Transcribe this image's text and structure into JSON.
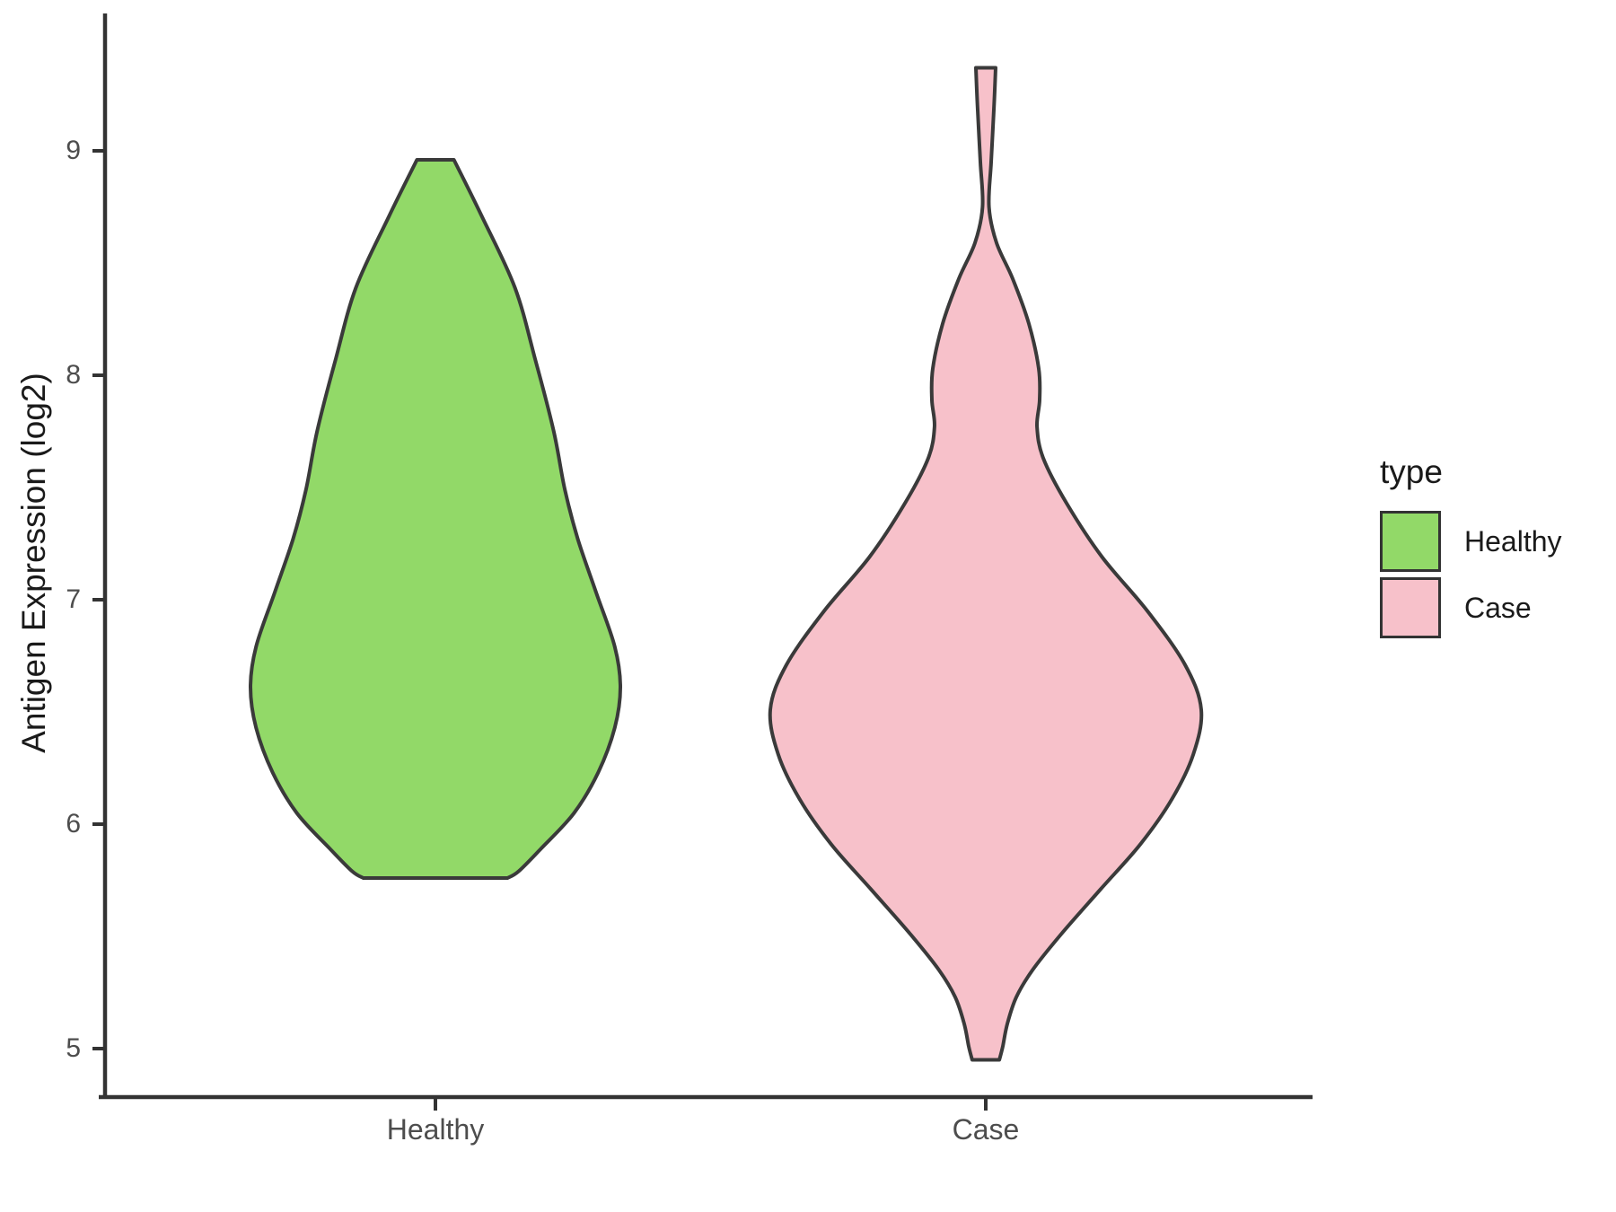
{
  "chart_data": {
    "type": "violin",
    "title": "",
    "xlabel": "",
    "ylabel": "Antigen Expression (log2)",
    "categories": [
      "Healthy",
      "Case"
    ],
    "y_ticks": [
      9,
      8,
      7,
      6,
      5
    ],
    "ylim": [
      4.7,
      9.6
    ],
    "grid": "off",
    "legend_position": "right",
    "series": [
      {
        "name": "Healthy",
        "fill": "#92D968",
        "min": 5.76,
        "max": 8.96,
        "peak_at": 6.6,
        "profile": [
          {
            "v": 8.96,
            "f": 0.1
          },
          {
            "v": 8.71,
            "f": 0.25
          },
          {
            "v": 8.39,
            "f": 0.43
          },
          {
            "v": 8.07,
            "f": 0.54
          },
          {
            "v": 7.75,
            "f": 0.64
          },
          {
            "v": 7.49,
            "f": 0.7
          },
          {
            "v": 7.27,
            "f": 0.77
          },
          {
            "v": 7.03,
            "f": 0.87
          },
          {
            "v": 6.79,
            "f": 0.97
          },
          {
            "v": 6.61,
            "f": 1.0
          },
          {
            "v": 6.43,
            "f": 0.97
          },
          {
            "v": 6.23,
            "f": 0.88
          },
          {
            "v": 6.05,
            "f": 0.75
          },
          {
            "v": 5.89,
            "f": 0.57
          },
          {
            "v": 5.79,
            "f": 0.45
          },
          {
            "v": 5.76,
            "f": 0.39
          }
        ]
      },
      {
        "name": "Case",
        "fill": "#F7C1CA",
        "min": 4.95,
        "max": 9.37,
        "peak_at": 6.5,
        "profile": [
          {
            "v": 9.37,
            "f": 0.046
          },
          {
            "v": 9.19,
            "f": 0.038
          },
          {
            "v": 8.95,
            "f": 0.025
          },
          {
            "v": 8.75,
            "f": 0.015
          },
          {
            "v": 8.59,
            "f": 0.05
          },
          {
            "v": 8.43,
            "f": 0.125
          },
          {
            "v": 8.23,
            "f": 0.2
          },
          {
            "v": 8.03,
            "f": 0.246
          },
          {
            "v": 7.89,
            "f": 0.25
          },
          {
            "v": 7.77,
            "f": 0.238
          },
          {
            "v": 7.63,
            "f": 0.267
          },
          {
            "v": 7.43,
            "f": 0.375
          },
          {
            "v": 7.19,
            "f": 0.54
          },
          {
            "v": 6.95,
            "f": 0.75
          },
          {
            "v": 6.71,
            "f": 0.925
          },
          {
            "v": 6.51,
            "f": 1.0
          },
          {
            "v": 6.31,
            "f": 0.963
          },
          {
            "v": 6.11,
            "f": 0.863
          },
          {
            "v": 5.91,
            "f": 0.717
          },
          {
            "v": 5.71,
            "f": 0.533
          },
          {
            "v": 5.51,
            "f": 0.35
          },
          {
            "v": 5.35,
            "f": 0.217
          },
          {
            "v": 5.23,
            "f": 0.142
          },
          {
            "v": 5.11,
            "f": 0.1
          },
          {
            "v": 5.01,
            "f": 0.079
          },
          {
            "v": 4.95,
            "f": 0.063
          }
        ]
      }
    ]
  },
  "legend": {
    "title": "type",
    "items": [
      {
        "label": "Healthy",
        "color": "#92D968"
      },
      {
        "label": "Case",
        "color": "#F7C1CA"
      }
    ]
  },
  "colors": {
    "outline": "#3A3A3A",
    "axis": "#333333",
    "tick_text": "#4D4D4D",
    "title_text": "#1A1A1A"
  }
}
